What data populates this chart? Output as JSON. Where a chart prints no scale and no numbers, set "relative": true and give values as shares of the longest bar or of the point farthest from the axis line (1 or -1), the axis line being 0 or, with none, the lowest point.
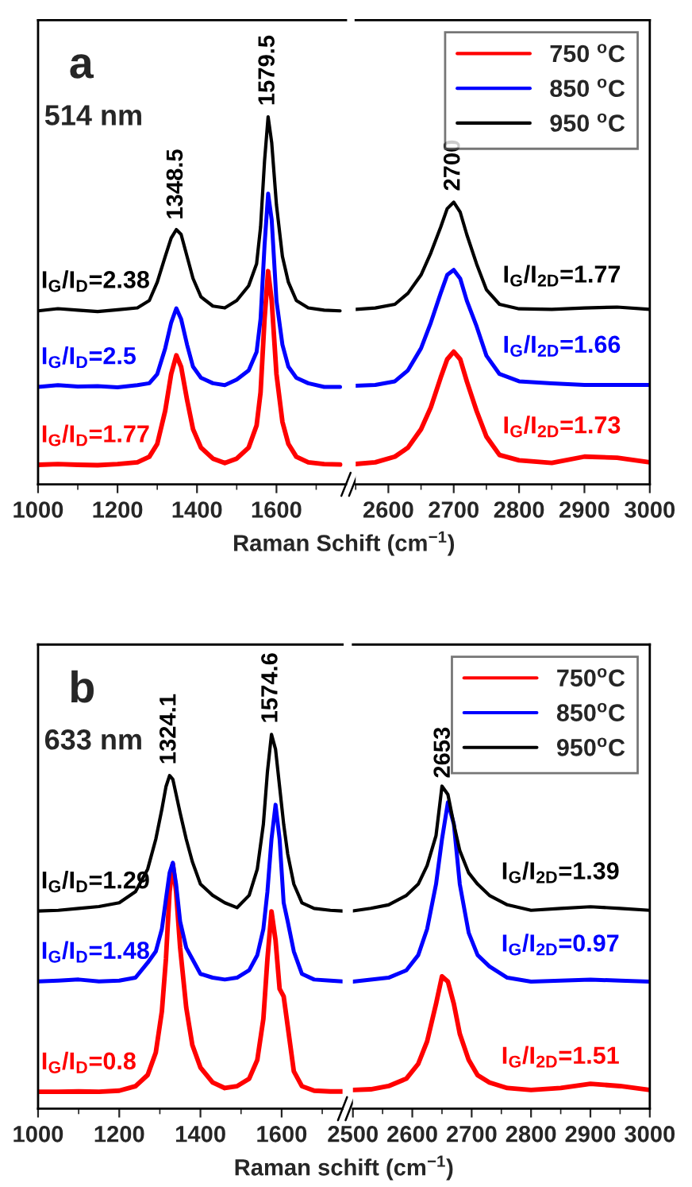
{
  "chart_data": [
    {
      "type": "line",
      "relative": true,
      "tick_labels": "x",
      "title": "a",
      "subtitle": "514 nm",
      "xlabel": "Raman Schift (cm$^{−1}$)",
      "xlim": [
        1000,
        1775
      ],
      "xticks": [
        1000,
        1200,
        1400,
        1600
      ],
      "x": [
        1000,
        1050,
        1100,
        1150,
        1200,
        1250,
        1280,
        1300,
        1320,
        1335,
        1348,
        1360,
        1375,
        1390,
        1410,
        1440,
        1470,
        1500,
        1530,
        1550,
        1560,
        1570,
        1579,
        1588,
        1600,
        1615,
        1630,
        1650,
        1680,
        1720,
        1760
      ],
      "series": [
        {
          "color": "#ff0000",
          "values": [
            0.053,
            0.055,
            0.053,
            0.052,
            0.055,
            0.06,
            0.075,
            0.11,
            0.2,
            0.3,
            0.351,
            0.32,
            0.23,
            0.15,
            0.1,
            0.07,
            0.058,
            0.07,
            0.1,
            0.16,
            0.25,
            0.45,
            0.58,
            0.5,
            0.3,
            0.17,
            0.11,
            0.075,
            0.06,
            0.055,
            0.054
          ]
        },
        {
          "color": "#0000ff",
          "values": [
            0.265,
            0.27,
            0.266,
            0.267,
            0.264,
            0.27,
            0.275,
            0.3,
            0.37,
            0.44,
            0.479,
            0.45,
            0.38,
            0.32,
            0.29,
            0.275,
            0.27,
            0.285,
            0.31,
            0.36,
            0.45,
            0.65,
            0.791,
            0.72,
            0.5,
            0.38,
            0.32,
            0.29,
            0.275,
            0.265,
            0.265
          ]
        },
        {
          "color": "#000000",
          "values": [
            0.472,
            0.478,
            0.474,
            0.47,
            0.475,
            0.48,
            0.5,
            0.55,
            0.62,
            0.67,
            0.693,
            0.68,
            0.62,
            0.56,
            0.51,
            0.485,
            0.48,
            0.5,
            0.54,
            0.6,
            0.7,
            0.88,
            1.0,
            0.93,
            0.76,
            0.62,
            0.55,
            0.5,
            0.48,
            0.474,
            0.472
          ]
        }
      ],
      "annotations": [
        {
          "text": "1348.5",
          "x": 1348.5,
          "y": 0.69
        },
        {
          "text": "1579.5",
          "x": 1579.5,
          "y": 1.0
        },
        "I$_{G}$/I$_{D}$=2.38",
        "I$_{G}$/I$_{D}$=2.5",
        "I$_{G}$/I$_{D}$=1.77"
      ]
    },
    {
      "type": "line",
      "relative": true,
      "tick_labels": "x",
      "legend": "top right",
      "xlim": [
        2550,
        3000
      ],
      "xticks": [
        2600,
        2700,
        2800,
        2900,
        3000
      ],
      "x": [
        2550,
        2580,
        2610,
        2630,
        2650,
        2665,
        2680,
        2690,
        2700,
        2710,
        2720,
        2735,
        2750,
        2770,
        2800,
        2850,
        2900,
        2950,
        3000
      ],
      "series": [
        {
          "name": "750 $^{o}$C",
          "color": "#ff0000",
          "values": [
            0.072,
            0.078,
            0.098,
            0.13,
            0.195,
            0.273,
            0.378,
            0.443,
            0.47,
            0.443,
            0.365,
            0.26,
            0.169,
            0.104,
            0.085,
            0.076,
            0.098,
            0.094,
            0.078
          ]
        },
        {
          "name": "850 $^{o}$C",
          "color": "#0000ff",
          "values": [
            0.349,
            0.352,
            0.365,
            0.404,
            0.482,
            0.573,
            0.677,
            0.742,
            0.76,
            0.729,
            0.651,
            0.56,
            0.456,
            0.391,
            0.365,
            0.358,
            0.352,
            0.352,
            0.352
          ]
        },
        {
          "name": "950 $^{o}$C",
          "color": "#000000",
          "values": [
            0.62,
            0.625,
            0.638,
            0.677,
            0.742,
            0.82,
            0.911,
            0.977,
            1.0,
            0.964,
            0.885,
            0.781,
            0.69,
            0.638,
            0.622,
            0.62,
            0.625,
            0.628,
            0.62
          ]
        }
      ],
      "annotations": [
        {
          "text": "2700",
          "x": 2700,
          "y": 1.0
        },
        "I$_{G}$/I$_{2D}$=1.77",
        "I$_{G}$/I$_{2D}$=1.66",
        "I$_{G}$/I$_{2D}$=1.73"
      ]
    },
    {
      "type": "line",
      "relative": true,
      "tick_labels": "x",
      "title": "b",
      "subtitle": "633 nm",
      "xlabel": "Raman schift (cm$^{−1}$)",
      "xlim": [
        1000,
        1750
      ],
      "xticks": [
        1000,
        1200,
        1400,
        1600
      ],
      "x": [
        1000,
        1050,
        1100,
        1150,
        1200,
        1240,
        1270,
        1290,
        1305,
        1315,
        1324,
        1332,
        1340,
        1350,
        1365,
        1380,
        1400,
        1430,
        1460,
        1490,
        1520,
        1540,
        1555,
        1565,
        1575,
        1585,
        1595,
        1605,
        1615,
        1630,
        1650,
        1680,
        1720,
        1750
      ],
      "series": [
        {
          "color": "#ff0000",
          "values": [
            0.045,
            0.045,
            0.046,
            0.045,
            0.048,
            0.06,
            0.09,
            0.15,
            0.26,
            0.4,
            0.58,
            0.654,
            0.58,
            0.43,
            0.27,
            0.17,
            0.11,
            0.07,
            0.055,
            0.06,
            0.08,
            0.13,
            0.24,
            0.4,
            0.527,
            0.45,
            0.32,
            0.3,
            0.22,
            0.1,
            0.06,
            0.048,
            0.046,
            0.046
          ]
        },
        {
          "color": "#0000ff",
          "values": [
            0.34,
            0.342,
            0.345,
            0.34,
            0.342,
            0.35,
            0.39,
            0.42,
            0.48,
            0.56,
            0.63,
            0.657,
            0.6,
            0.5,
            0.43,
            0.4,
            0.36,
            0.35,
            0.345,
            0.35,
            0.37,
            0.41,
            0.48,
            0.58,
            0.72,
            0.812,
            0.72,
            0.55,
            0.5,
            0.42,
            0.36,
            0.345,
            0.342,
            0.34
          ]
        },
        {
          "color": "#000000",
          "values": [
            0.528,
            0.53,
            0.535,
            0.54,
            0.55,
            0.58,
            0.64,
            0.72,
            0.8,
            0.86,
            0.89,
            0.88,
            0.84,
            0.79,
            0.72,
            0.66,
            0.6,
            0.57,
            0.55,
            0.537,
            0.57,
            0.64,
            0.76,
            0.9,
            1.0,
            0.96,
            0.86,
            0.76,
            0.68,
            0.6,
            0.55,
            0.535,
            0.53,
            0.528
          ]
        }
      ],
      "annotations": [
        {
          "text": "1324.1",
          "x": 1324.1,
          "y": 0.89
        },
        {
          "text": "1574.6",
          "x": 1574.6,
          "y": 1.0
        },
        "I$_{G}$/I$_{D}$=1.29",
        "I$_{G}$/I$_{D}$=1.48",
        "I$_{G}$/I$_{D}$=0.8"
      ]
    },
    {
      "type": "line",
      "relative": true,
      "tick_labels": "x",
      "legend": "top right",
      "xlim": [
        2500,
        3000
      ],
      "xticks": [
        2500,
        2600,
        2700,
        2800,
        2900,
        3000
      ],
      "x": [
        2500,
        2530,
        2560,
        2590,
        2610,
        2625,
        2640,
        2650,
        2660,
        2670,
        2680,
        2695,
        2710,
        2730,
        2760,
        2800,
        2850,
        2900,
        2950,
        3000
      ],
      "series": [
        {
          "name": "750$^{o}$C",
          "color": "#ff0000",
          "values": [
            0.058,
            0.06,
            0.07,
            0.093,
            0.139,
            0.209,
            0.325,
            0.41,
            0.394,
            0.325,
            0.232,
            0.151,
            0.104,
            0.081,
            0.064,
            0.058,
            0.064,
            0.077,
            0.07,
            0.058
          ]
        },
        {
          "name": "850$^{o}$C",
          "color": "#0000ff",
          "values": [
            0.394,
            0.4,
            0.406,
            0.429,
            0.476,
            0.557,
            0.696,
            0.835,
            0.95,
            0.882,
            0.696,
            0.545,
            0.476,
            0.441,
            0.406,
            0.394,
            0.397,
            0.4,
            0.397,
            0.394
          ]
        },
        {
          "name": "950$^{o}$C",
          "color": "#000000",
          "values": [
            0.613,
            0.621,
            0.632,
            0.661,
            0.696,
            0.754,
            0.847,
            1.0,
            0.974,
            0.882,
            0.8,
            0.731,
            0.696,
            0.661,
            0.632,
            0.615,
            0.621,
            0.626,
            0.621,
            0.615
          ]
        }
      ],
      "annotations": [
        {
          "text": "2653",
          "x": 2653,
          "y": 0.99
        },
        "I$_{G}$/I$_{2D}$=1.39",
        "I$_{G}$/I$_{2D}$=0.97",
        "I$_{G}$/I$_{2D}$=1.51"
      ]
    }
  ]
}
